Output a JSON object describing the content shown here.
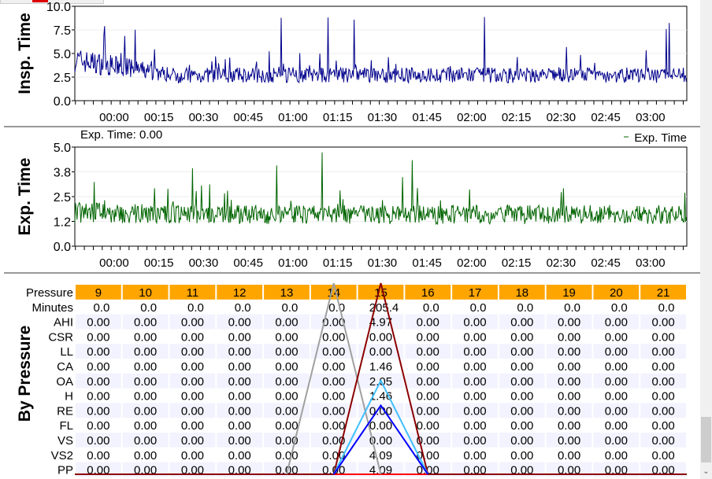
{
  "chart_data": [
    {
      "type": "line",
      "ylabel": "Insp. Time",
      "ylim": [
        0,
        10
      ],
      "yticks": [
        "0.0",
        "2.5",
        "5.0",
        "7.5",
        "10.0"
      ],
      "color": "#00008b",
      "base": 2.7,
      "early": 4.3,
      "seed": 7
    },
    {
      "type": "line",
      "ylabel": "Exp. Time",
      "ylim": [
        0,
        5
      ],
      "yticks": [
        "0.0",
        "1.2",
        "2.5",
        "3.8",
        "5.0"
      ],
      "color": "#006400",
      "base": 1.6,
      "early": 1.7,
      "seed": 13,
      "legend": "Exp. Time",
      "readout": "Exp. Time: 0.00"
    }
  ],
  "time_ticks": [
    "00:00",
    "00:15",
    "00:30",
    "00:45",
    "01:00",
    "01:15",
    "01:30",
    "01:45",
    "02:00",
    "02:15",
    "02:30",
    "02:45",
    "03:00"
  ],
  "table": {
    "ylabel": "By Pressure",
    "header_label": "Pressure",
    "pressures": [
      "9",
      "10",
      "11",
      "12",
      "13",
      "14",
      "15",
      "16",
      "17",
      "18",
      "19",
      "20",
      "21"
    ],
    "rows": [
      {
        "label": "Minutes",
        "values": [
          "0.0",
          "0.0",
          "0.0",
          "0.0",
          "0.0",
          "0.0",
          "205.4",
          "0.0",
          "0.0",
          "0.0",
          "0.0",
          "0.0",
          "0.0"
        ]
      },
      {
        "label": "AHI",
        "values": [
          "0.00",
          "0.00",
          "0.00",
          "0.00",
          "0.00",
          "0.00",
          "4.97",
          "0.00",
          "0.00",
          "0.00",
          "0.00",
          "0.00",
          "0.00"
        ]
      },
      {
        "label": "CSR",
        "values": [
          "0.00",
          "0.00",
          "0.00",
          "0.00",
          "0.00",
          "0.00",
          "0.00",
          "0.00",
          "0.00",
          "0.00",
          "0.00",
          "0.00",
          "0.00"
        ]
      },
      {
        "label": "LL",
        "values": [
          "0.00",
          "0.00",
          "0.00",
          "0.00",
          "0.00",
          "0.00",
          "0.00",
          "0.00",
          "0.00",
          "0.00",
          "0.00",
          "0.00",
          "0.00"
        ]
      },
      {
        "label": "CA",
        "values": [
          "0.00",
          "0.00",
          "0.00",
          "0.00",
          "0.00",
          "0.00",
          "1.46",
          "0.00",
          "0.00",
          "0.00",
          "0.00",
          "0.00",
          "0.00"
        ]
      },
      {
        "label": "OA",
        "values": [
          "0.00",
          "0.00",
          "0.00",
          "0.00",
          "0.00",
          "0.00",
          "2.05",
          "0.00",
          "0.00",
          "0.00",
          "0.00",
          "0.00",
          "0.00"
        ]
      },
      {
        "label": "H",
        "values": [
          "0.00",
          "0.00",
          "0.00",
          "0.00",
          "0.00",
          "0.00",
          "1.46",
          "0.00",
          "0.00",
          "0.00",
          "0.00",
          "0.00",
          "0.00"
        ]
      },
      {
        "label": "RE",
        "values": [
          "0.00",
          "0.00",
          "0.00",
          "0.00",
          "0.00",
          "0.00",
          "0.00",
          "0.00",
          "0.00",
          "0.00",
          "0.00",
          "0.00",
          "0.00"
        ]
      },
      {
        "label": "FL",
        "values": [
          "0.00",
          "0.00",
          "0.00",
          "0.00",
          "0.00",
          "0.00",
          "0.00",
          "0.00",
          "0.00",
          "0.00",
          "0.00",
          "0.00",
          "0.00"
        ]
      },
      {
        "label": "VS",
        "values": [
          "0.00",
          "0.00",
          "0.00",
          "0.00",
          "0.00",
          "0.00",
          "0.00",
          "0.00",
          "0.00",
          "0.00",
          "0.00",
          "0.00",
          "0.00"
        ]
      },
      {
        "label": "VS2",
        "values": [
          "0.00",
          "0.00",
          "0.00",
          "0.00",
          "0.00",
          "0.00",
          "4.09",
          "0.00",
          "0.00",
          "0.00",
          "0.00",
          "0.00",
          "0.00"
        ]
      },
      {
        "label": "PP",
        "values": [
          "0.00",
          "0.00",
          "0.00",
          "0.00",
          "0.00",
          "0.00",
          "4.09",
          "0.00",
          "0.00",
          "0.00",
          "0.00",
          "0.00",
          "0.00"
        ]
      }
    ],
    "overlay": [
      {
        "color": "#a0a0a0",
        "peak_col": 5.5,
        "peak_frac": 1.0
      },
      {
        "color": "#8b0000",
        "peak_col": 6.5,
        "peak_frac": 1.0
      },
      {
        "color": "#40c0ff",
        "peak_col": 6.5,
        "peak_frac": 0.49
      },
      {
        "color": "#0000ff",
        "peak_col": 6.5,
        "peak_frac": 0.36
      }
    ]
  }
}
